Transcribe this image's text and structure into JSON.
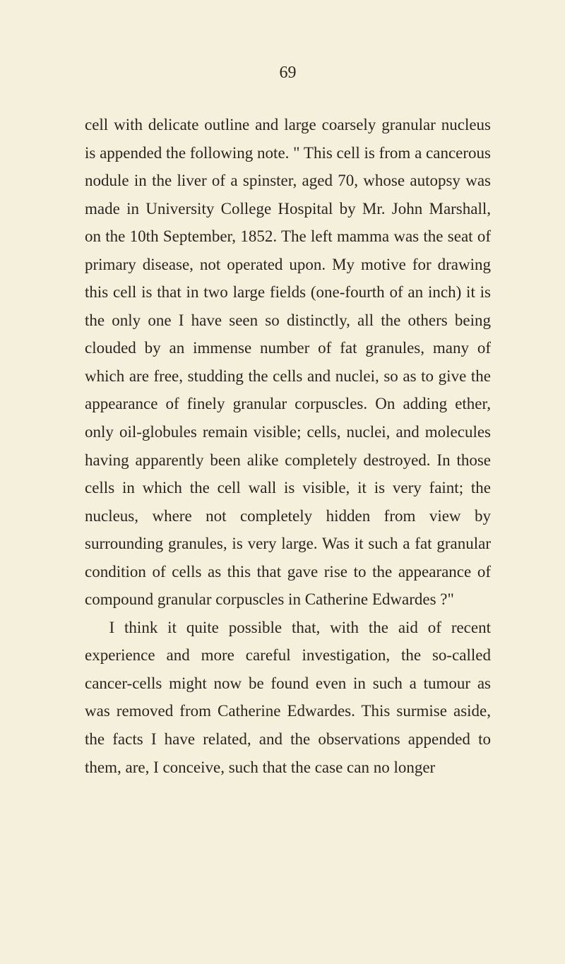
{
  "page": {
    "number": "69",
    "background_color": "#f5f0dc",
    "text_color": "#2a2520",
    "font_family": "Georgia, 'Times New Roman', serif",
    "body_fontsize": 23,
    "line_height": 1.72,
    "page_number_fontsize": 24
  },
  "paragraphs": [
    "cell with delicate outline and large coarsely granular nucleus is appended the following note. \" This cell is from a cancerous nodule in the liver of a spinster, aged 70, whose autopsy was made in University College Hospital by Mr. John Marshall, on the 10th September, 1852. The left mamma was the seat of primary disease, not operated upon. My motive for drawing this cell is that in two large fields (one-fourth of an inch) it is the only one I have seen so distinctly, all the others being clouded by an immense number of fat granules, many of which are free, studding the cells and nuclei, so as to give the appearance of finely granular corpuscles. On adding ether, only oil-globules remain visible; cells, nuclei, and molecules having apparently been alike completely destroyed. In those cells in which the cell wall is visible, it is very faint; the nucleus, where not completely hidden from view by surrounding granules, is very large. Was it such a fat granular condition of cells as this that gave rise to the appearance of compound granular corpuscles in Catherine Edwardes ?\"",
    "I think it quite possible that, with the aid of recent experience and more careful investigation, the so-called cancer-cells might now be found even in such a tumour as was removed from Catherine Edwardes. This surmise aside, the facts I have related, and the observations appended to them, are, I conceive, such that the case can no longer"
  ]
}
